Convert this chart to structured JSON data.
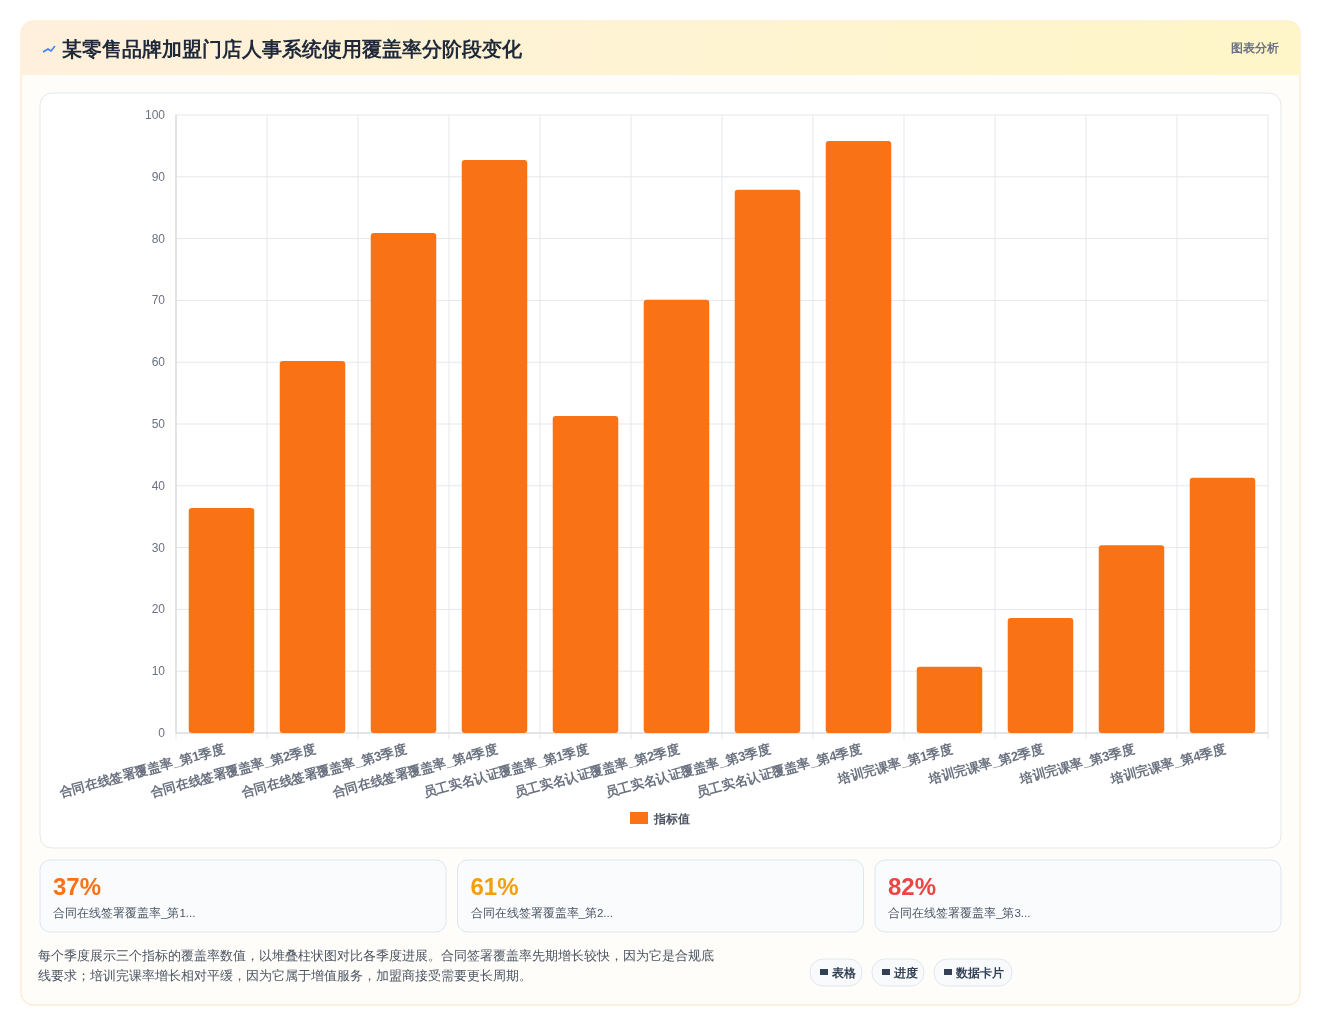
{
  "chart_data": {
    "type": "bar",
    "title": "某零售品牌加盟门店人事系统使用覆盖率分阶段变化",
    "categories": [
      "合同在线签署覆盖率_第1季度",
      "合同在线签署覆盖率_第2季度",
      "合同在线签署覆盖率_第3季度",
      "合同在线签署覆盖率_第4季度",
      "员工实名认证覆盖率_第1季度",
      "员工实名认证覆盖率_第2季度",
      "员工实名认证覆盖率_第3季度",
      "员工实名认证覆盖率_第4季度",
      "培训完课率_第1季度",
      "培训完课率_第2季度",
      "培训完课率_第3季度",
      "培训完课率_第4季度"
    ],
    "series": [
      {
        "name": "指标值",
        "color": "#f97316",
        "values": [
          36.4,
          60.2,
          80.9,
          92.7,
          51.3,
          70.1,
          87.9,
          95.8,
          10.7,
          18.6,
          30.4,
          41.3
        ]
      }
    ],
    "ylim": [
      0,
      100
    ],
    "yticks": [
      0,
      10,
      20,
      30,
      40,
      50,
      60,
      70,
      80,
      90,
      100
    ],
    "grid": true,
    "legend": "bottom",
    "annotations": [
      "图表分析",
      "37%",
      "合同在线签署覆盖率_第1...",
      "61%",
      "合同在线签署覆盖率_第2...",
      "82%",
      "合同在线签署覆盖率_第3...",
      "每个季度展示三个指标的覆盖率数值，以堆叠柱状图对比各季度进展。合同签署覆盖率先期增长较快，因为它是合规底线要求；培训完课率增长相对平缓，因为它属于增值服务，加盟商接受需要更长周期。",
      "表格",
      "进度",
      "数据卡片"
    ]
  }
}
